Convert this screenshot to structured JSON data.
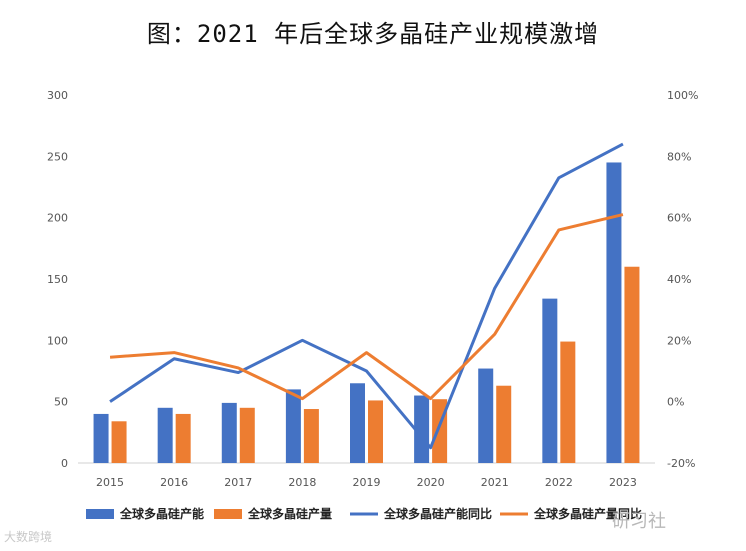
{
  "title": "图：2021 年后全球多晶硅产业规模激增",
  "watermark_left": "大数跨境",
  "watermark_right": "研习社",
  "chart_data": {
    "type": "bar",
    "title": "图：2021 年后全球多晶硅产业规模激增",
    "categories": [
      "2015",
      "2016",
      "2017",
      "2018",
      "2019",
      "2020",
      "2021",
      "2022",
      "2023"
    ],
    "ylim": [
      0,
      300
    ],
    "yticks": [
      "0",
      "50",
      "100",
      "150",
      "200",
      "250",
      "300"
    ],
    "y2lim": [
      -20,
      100
    ],
    "y2ticks": [
      "-20%",
      "0%",
      "20%",
      "40%",
      "60%",
      "80%",
      "100%"
    ],
    "grid": false,
    "legend_position": "bottom",
    "series": [
      {
        "name": "全球多晶硅产能",
        "kind": "bar",
        "axis": "left",
        "color": "#4472C4",
        "values": [
          40,
          45,
          49,
          60,
          65,
          55,
          77,
          134,
          245
        ]
      },
      {
        "name": "全球多晶硅产量",
        "kind": "bar",
        "axis": "left",
        "color": "#ED7D31",
        "values": [
          34,
          40,
          45,
          44,
          51,
          52,
          63,
          99,
          160
        ]
      },
      {
        "name": "全球多晶硅产能同比",
        "kind": "line",
        "axis": "right",
        "color": "#4472C4",
        "values": [
          0,
          14,
          9.5,
          20,
          10,
          -15,
          37,
          73,
          84
        ]
      },
      {
        "name": "全球多晶硅产量同比",
        "kind": "line",
        "axis": "right",
        "color": "#ED7D31",
        "values": [
          14.5,
          16,
          11,
          1,
          16,
          1,
          22,
          56,
          61
        ]
      }
    ]
  }
}
